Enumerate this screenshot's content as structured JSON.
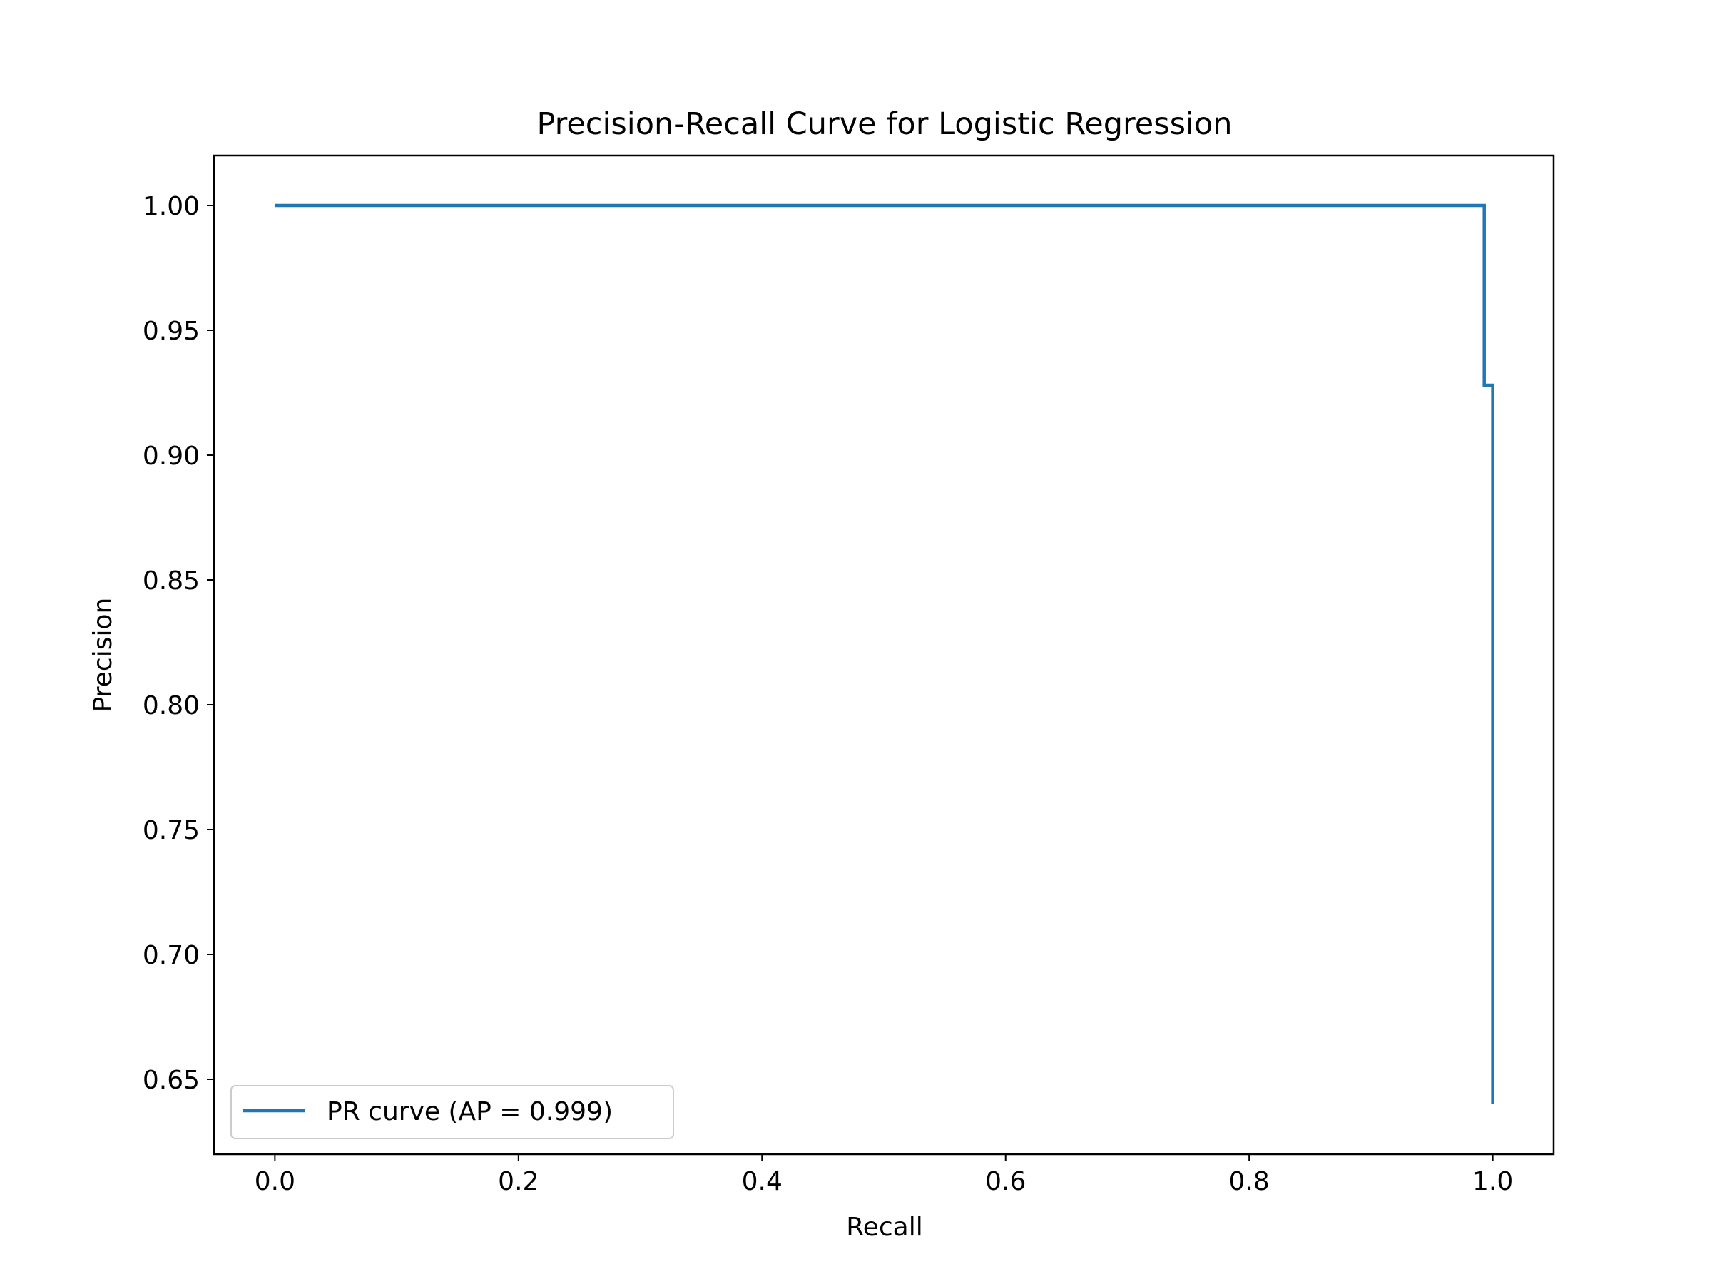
{
  "chart_data": {
    "type": "line",
    "title": "Precision-Recall Curve for Logistic Regression",
    "xlabel": "Recall",
    "ylabel": "Precision",
    "xlim": [
      -0.05,
      1.05
    ],
    "ylim": [
      0.62,
      1.02
    ],
    "xticks": [
      0.0,
      0.2,
      0.4,
      0.6,
      0.8,
      1.0
    ],
    "xtick_labels": [
      "0.0",
      "0.2",
      "0.4",
      "0.6",
      "0.8",
      "1.0"
    ],
    "yticks": [
      0.65,
      0.7,
      0.75,
      0.8,
      0.85,
      0.9,
      0.95,
      1.0
    ],
    "ytick_labels": [
      "0.65",
      "0.70",
      "0.75",
      "0.80",
      "0.85",
      "0.90",
      "0.95",
      "1.00"
    ],
    "grid": false,
    "legend": {
      "placement": "lower-left",
      "entries": [
        "PR curve (AP = 0.999)"
      ]
    },
    "series": [
      {
        "name": "PR curve (AP = 0.999)",
        "color": "#1f77b4",
        "drawstyle": "steps-post",
        "x": [
          0.0,
          0.993,
          0.993,
          1.0,
          1.0
        ],
        "y": [
          1.0,
          1.0,
          0.928,
          0.928,
          0.64
        ]
      }
    ]
  }
}
